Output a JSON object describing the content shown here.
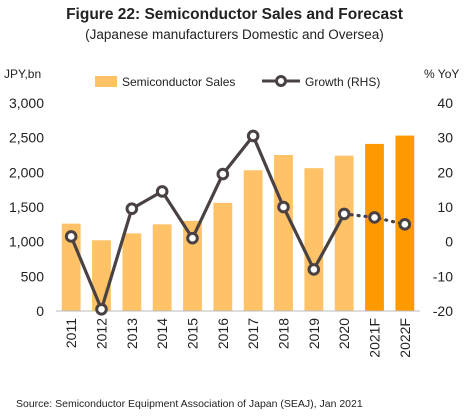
{
  "chart_data": {
    "type": "bar",
    "title": "Figure 22:  Semiconductor Sales and Forecast",
    "subtitle": "(Japanese manufacturers Domestic and Oversea)",
    "left_axis_label": "JPY,bn",
    "right_axis_label": "% YoY",
    "categories": [
      "2011",
      "2012",
      "2013",
      "2014",
      "2015",
      "2016",
      "2017",
      "2018",
      "2019",
      "2020",
      "2021F",
      "2022F"
    ],
    "left_ylim": [
      0,
      3000
    ],
    "left_ticks": [
      "0",
      "500",
      "1,000",
      "1,500",
      "2,000",
      "2,500",
      "3,000"
    ],
    "right_ylim": [
      -20,
      40
    ],
    "right_ticks": [
      "-20",
      "-10",
      "0",
      "10",
      "20",
      "30",
      "40"
    ],
    "series": [
      {
        "name": "Semiconductor Sales",
        "kind": "bar",
        "axis": "left",
        "color": "#FFC266",
        "forecast_color": "#FF9900",
        "values": [
          1260,
          1020,
          1120,
          1250,
          1300,
          1560,
          2030,
          2250,
          2060,
          2240,
          2410,
          2530
        ]
      },
      {
        "name": "Growth (RHS)",
        "kind": "line",
        "axis": "right",
        "color": "#4A4242",
        "values": [
          1.5,
          -19.5,
          9.5,
          14.5,
          1.0,
          19.5,
          30.5,
          10.0,
          -8.0,
          8.0,
          7.0,
          5.0
        ],
        "dotted_from_index": 9
      }
    ],
    "legend_placement": "top",
    "grid": false
  },
  "source": "Source: Semiconductor Equipment Association of Japan (SEAJ), Jan 2021"
}
